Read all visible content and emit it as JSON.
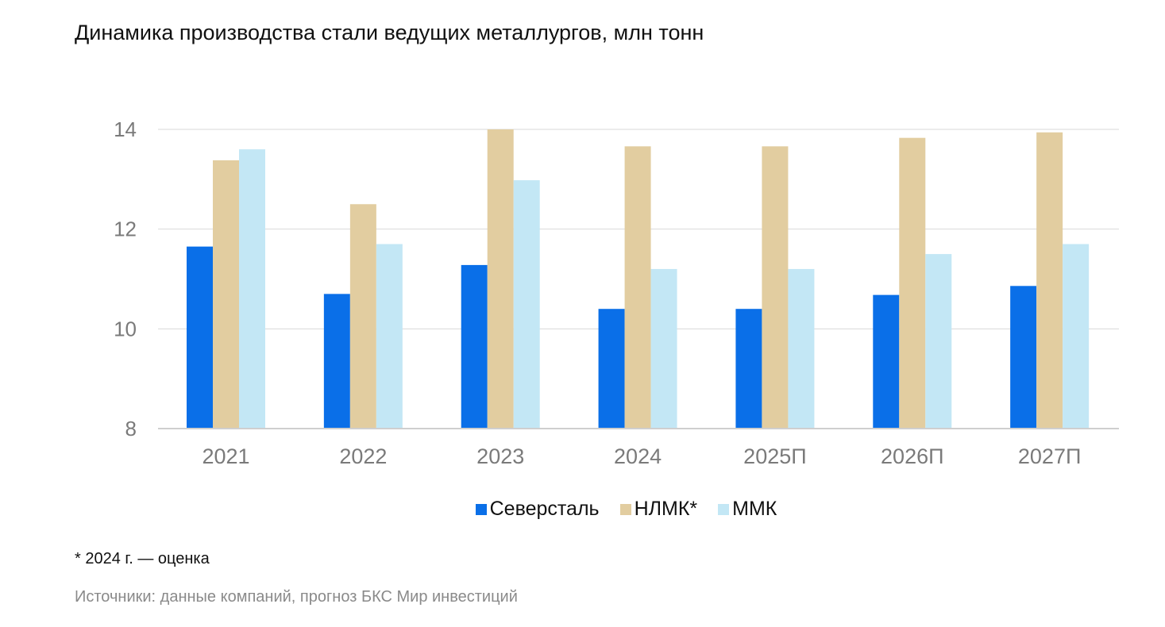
{
  "title": "Динамика производства стали ведущих металлургов, млн тонн",
  "chart_data": {
    "type": "bar",
    "categories": [
      "2021",
      "2022",
      "2023",
      "2024",
      "2025П",
      "2026П",
      "2027П"
    ],
    "series": [
      {
        "name": "Северсталь",
        "color": "#0a6fe8",
        "values": [
          11.65,
          10.7,
          11.28,
          10.4,
          10.4,
          10.68,
          10.86
        ]
      },
      {
        "name": "НЛМК*",
        "color": "#e2cda0",
        "values": [
          13.38,
          12.5,
          14.0,
          13.66,
          13.66,
          13.83,
          13.94
        ]
      },
      {
        "name": "ММК",
        "color": "#c3e7f5",
        "values": [
          13.6,
          11.7,
          12.98,
          11.2,
          11.2,
          11.5,
          11.7
        ]
      }
    ],
    "yticks": [
      8,
      10,
      12,
      14
    ],
    "ylim": [
      8,
      14
    ],
    "grid": true,
    "legend_position": "bottom"
  },
  "footnote": "* 2024 г. — оценка",
  "source": "Источники: данные компаний, прогноз БКС Мир инвестиций"
}
